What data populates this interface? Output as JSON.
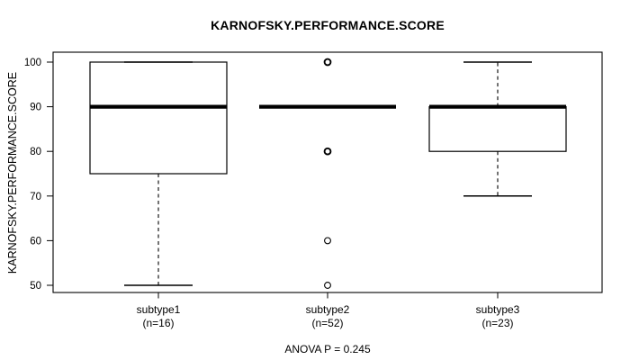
{
  "chart_data": {
    "type": "boxplot",
    "title": "KARNOFSKY.PERFORMANCE.SCORE",
    "ylabel": "KARNOFSKY.PERFORMANCE.SCORE",
    "xlabel": "",
    "annotation": "ANOVA P = 0.245",
    "ylim": [
      48,
      102
    ],
    "yticks": [
      50,
      60,
      70,
      80,
      90,
      100
    ],
    "grid": false,
    "legend": "none",
    "categories": [
      "subtype1",
      "subtype2",
      "subtype3"
    ],
    "groups": [
      {
        "label": "subtype1",
        "sublabel": "(n=16)",
        "n": 16,
        "whisker_low": 50,
        "q1": 75,
        "median": 90,
        "q3": 100,
        "whisker_high": 100,
        "outliers": [],
        "outlier_heavy": []
      },
      {
        "label": "subtype2",
        "sublabel": "(n=52)",
        "n": 52,
        "whisker_low": 90,
        "q1": 90,
        "median": 90,
        "q3": 90,
        "whisker_high": 90,
        "outliers": [
          100,
          80,
          60,
          50
        ],
        "outlier_heavy": [
          true,
          true,
          false,
          false
        ]
      },
      {
        "label": "subtype3",
        "sublabel": "(n=23)",
        "n": 23,
        "whisker_low": 70,
        "q1": 80,
        "median": 90,
        "q3": 90,
        "whisker_high": 100,
        "outliers": [],
        "outlier_heavy": []
      }
    ],
    "colors": {
      "line": "#000000",
      "background": "#ffffff"
    }
  }
}
